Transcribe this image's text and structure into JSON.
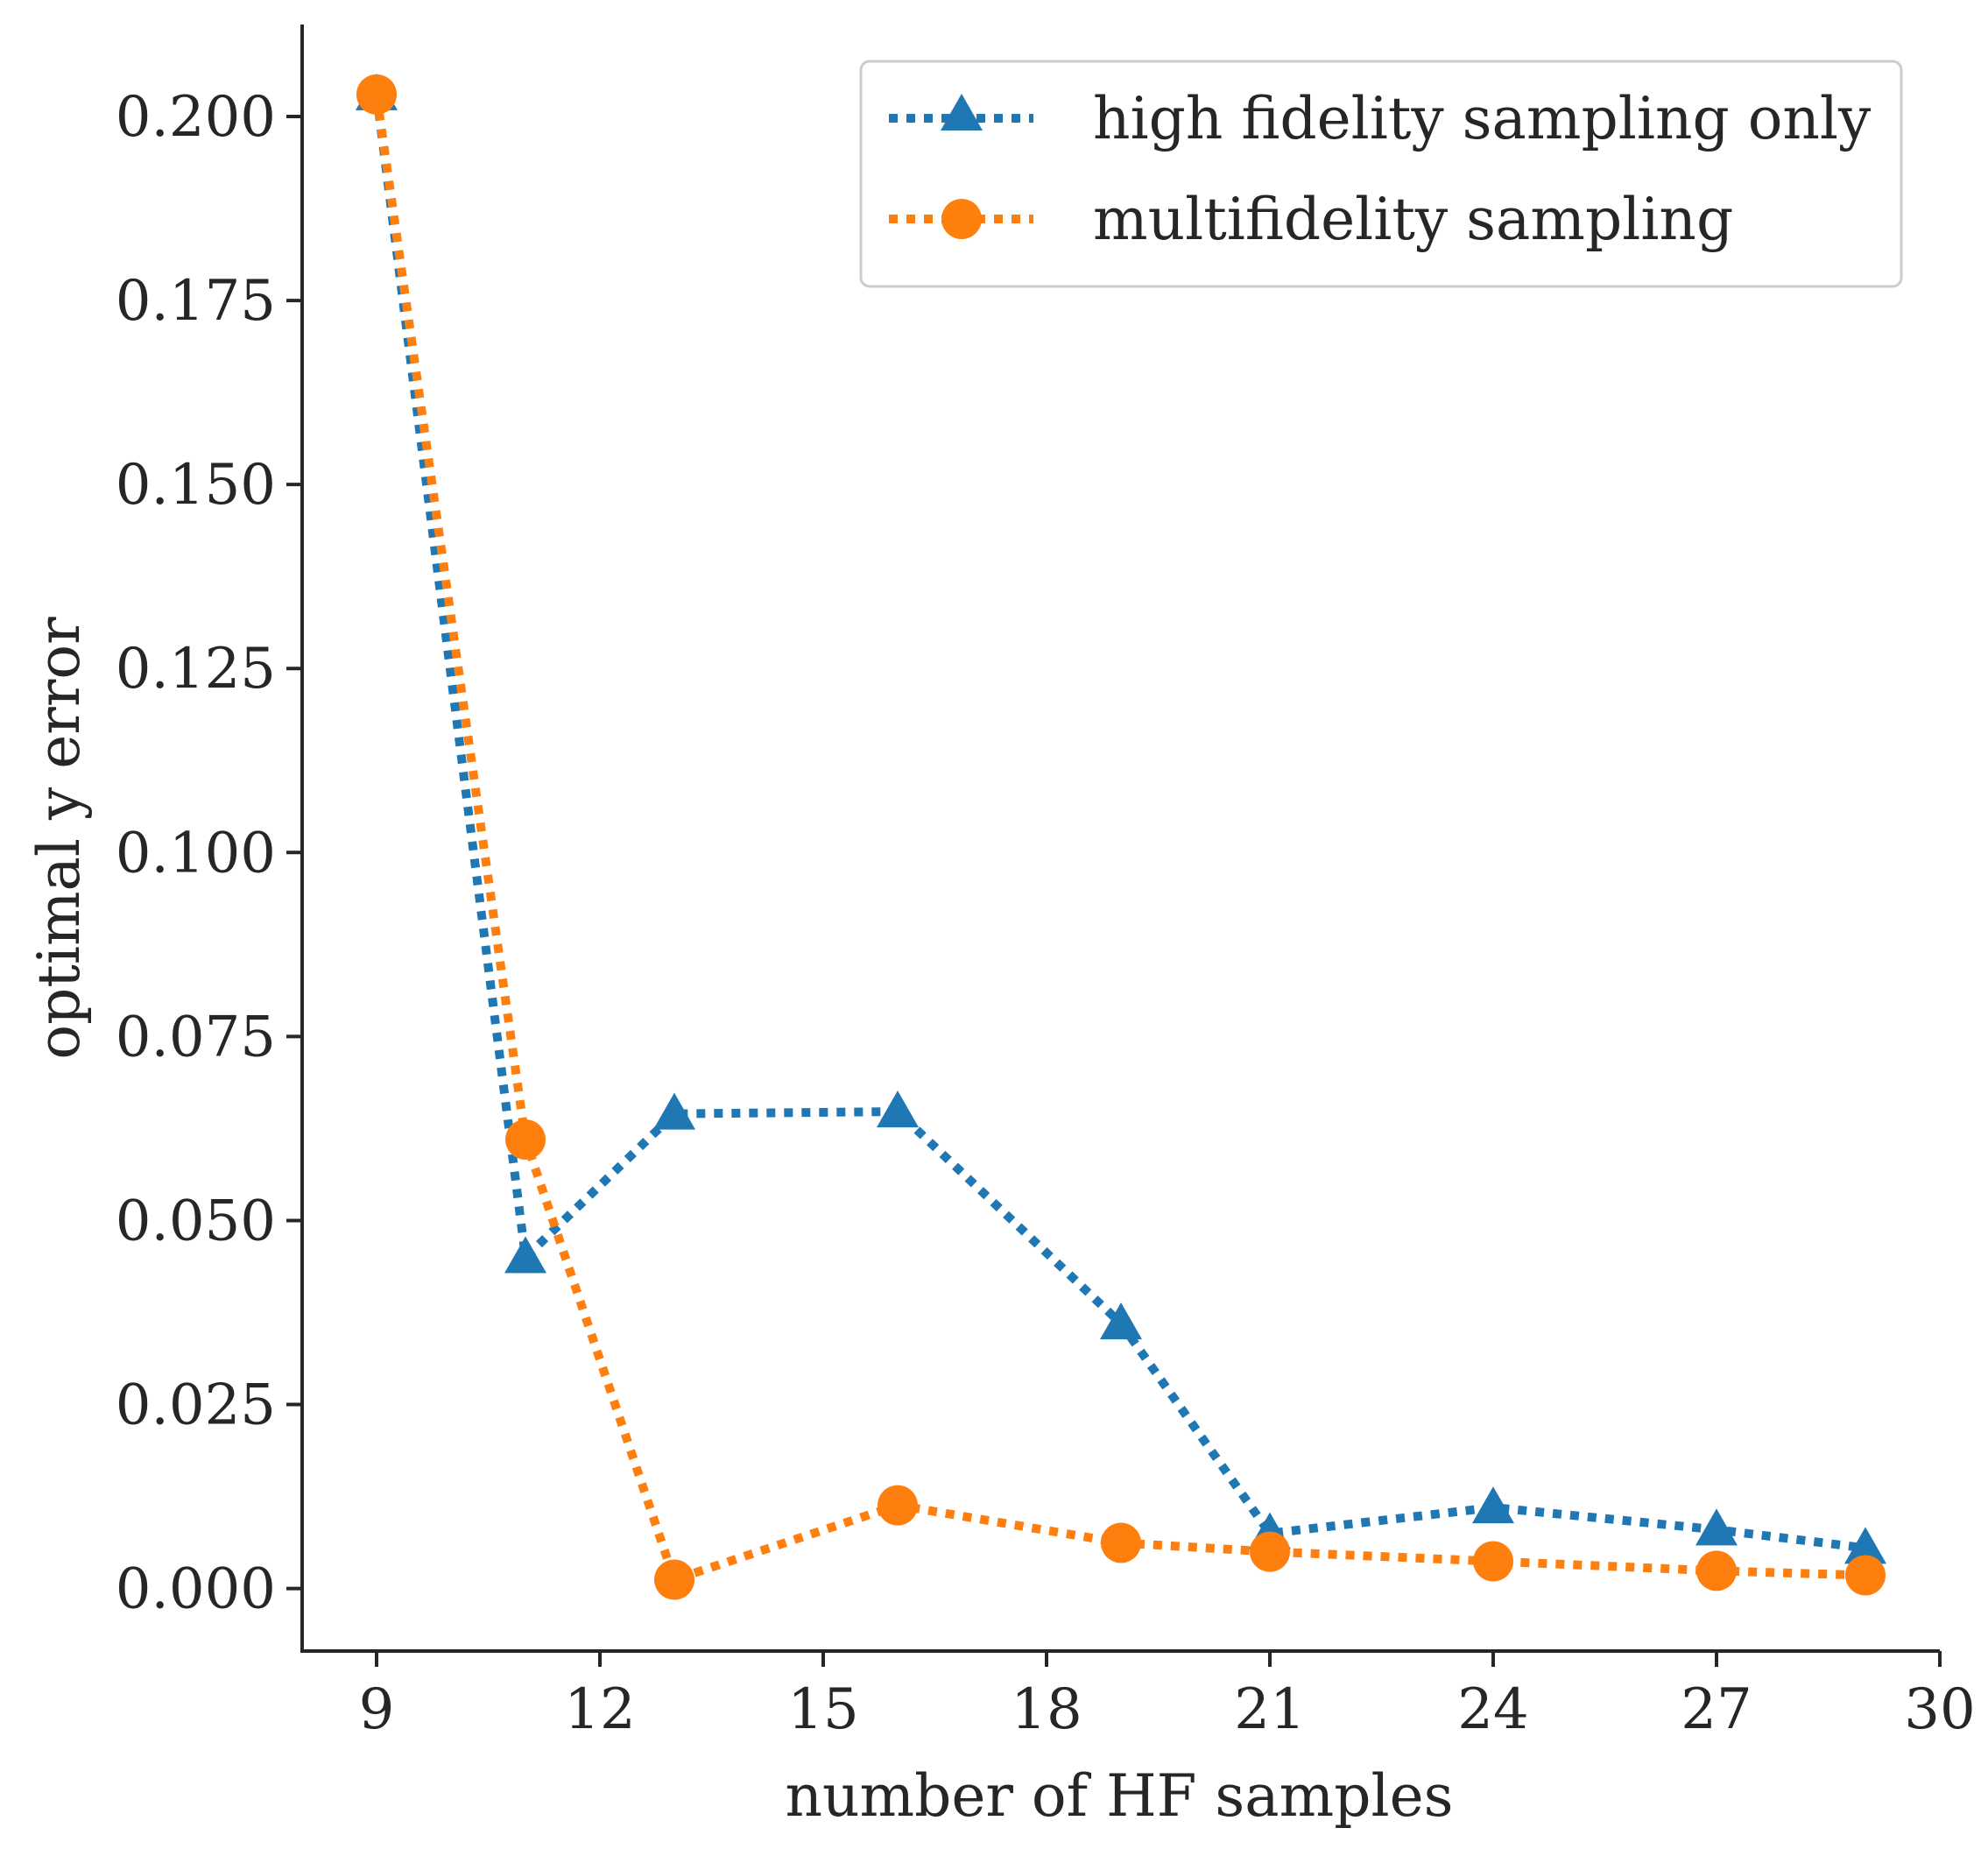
{
  "chart_data": {
    "type": "line",
    "title": "",
    "xlabel": "number of HF samples",
    "ylabel": "optimal y error",
    "xlim": [
      8,
      30
    ],
    "ylim": [
      -0.0085,
      0.2125
    ],
    "xticks": [
      9,
      12,
      15,
      18,
      21,
      24,
      27,
      30
    ],
    "xtick_labels": [
      "9",
      "12",
      "15",
      "18",
      "21",
      "24",
      "27",
      "30"
    ],
    "yticks": [
      0.0,
      0.025,
      0.05,
      0.075,
      0.1,
      0.125,
      0.15,
      0.175,
      0.2
    ],
    "ytick_labels": [
      "0.000",
      "0.025",
      "0.050",
      "0.075",
      "0.100",
      "0.125",
      "0.150",
      "0.175",
      "0.200"
    ],
    "grid": false,
    "legend_position": "top-right",
    "x": [
      9,
      11,
      13,
      16,
      19,
      21,
      24,
      27,
      29
    ],
    "series": [
      {
        "name": "high fidelity sampling only",
        "marker": "triangle",
        "color": "#1f77b4",
        "values": [
          0.203,
          0.045,
          0.0645,
          0.0648,
          0.036,
          0.0075,
          0.011,
          0.008,
          0.0055
        ]
      },
      {
        "name": "multifidelity sampling",
        "marker": "circle",
        "color": "#ff7f0e",
        "values": [
          0.203,
          0.061,
          0.0012,
          0.0113,
          0.0062,
          0.005,
          0.0037,
          0.0024,
          0.0018
        ]
      }
    ]
  }
}
